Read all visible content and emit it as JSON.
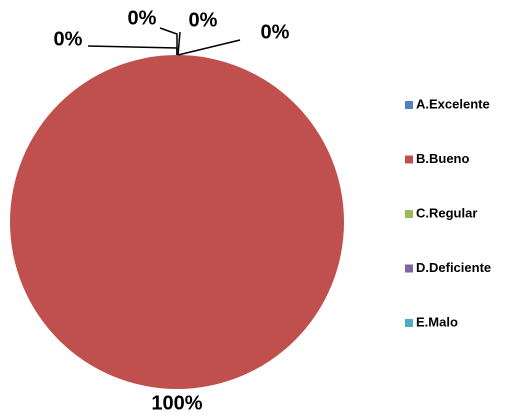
{
  "chart_data": {
    "type": "pie",
    "categories": [
      "A.Excelente",
      "B.Bueno",
      "C.Regular",
      "D.Deficiente",
      "E.Malo"
    ],
    "values": [
      0,
      100,
      0,
      0,
      0
    ],
    "value_labels": [
      "0%",
      "100%",
      "0%",
      "0%",
      "0%"
    ],
    "colors": [
      "#4f81bd",
      "#c0504d",
      "#9bbb59",
      "#8064a2",
      "#4bacc6"
    ],
    "legend": "right"
  }
}
